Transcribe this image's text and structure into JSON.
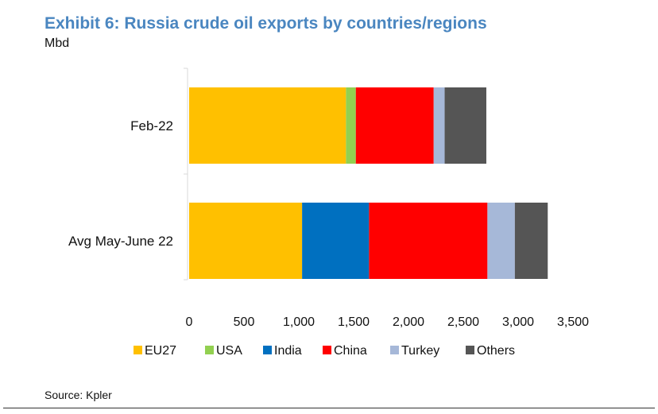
{
  "title": "Exhibit 6: Russia crude oil exports by countries/regions",
  "unit": "Mbd",
  "source": "Source: Kpler",
  "chart_data": {
    "type": "bar",
    "orientation": "horizontal",
    "stacked": true,
    "title": "Exhibit 6: Russia crude oil exports by countries/regions",
    "unit": "Mbd",
    "categories": [
      "Feb-22",
      "Avg May-June 22"
    ],
    "series": [
      {
        "name": "EU27",
        "color": "#ffc000",
        "values": [
          1430,
          1030
        ]
      },
      {
        "name": "USA",
        "color": "#92d050",
        "values": [
          90,
          0
        ]
      },
      {
        "name": "India",
        "color": "#0070c0",
        "values": [
          0,
          610
        ]
      },
      {
        "name": "China",
        "color": "#ff0000",
        "values": [
          710,
          1080
        ]
      },
      {
        "name": "Turkey",
        "color": "#a6b8d8",
        "values": [
          100,
          250
        ]
      },
      {
        "name": "Others",
        "color": "#555555",
        "values": [
          380,
          300
        ]
      }
    ],
    "xlim": [
      0,
      3500
    ],
    "xticks": [
      0,
      500,
      1000,
      1500,
      2000,
      2500,
      3000,
      3500
    ],
    "xtick_labels": [
      "0",
      "500",
      "1,000",
      "1,500",
      "2,000",
      "2,500",
      "3,000",
      "3,500"
    ],
    "grid": false,
    "legend_position": "bottom"
  }
}
